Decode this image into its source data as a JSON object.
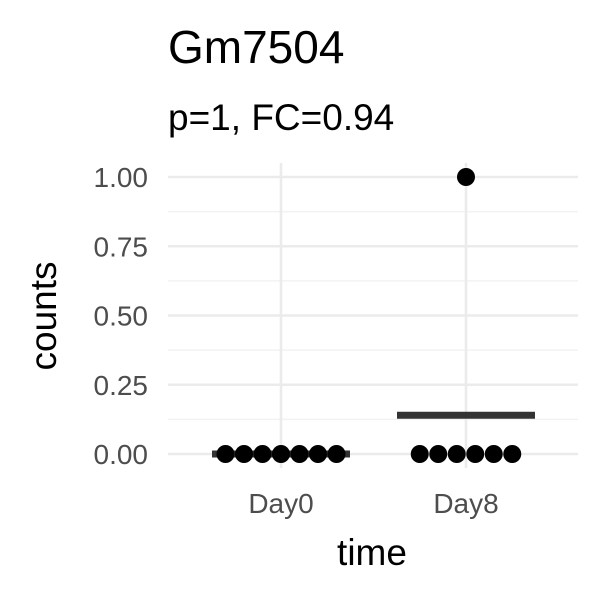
{
  "chart_data": {
    "type": "scatter",
    "title": "Gm7504",
    "subtitle": "p=1, FC=0.94",
    "xlabel": "time",
    "ylabel": "counts",
    "categories": [
      "Day0",
      "Day8"
    ],
    "ylim": [
      0,
      1
    ],
    "yticks": [
      0,
      0.25,
      0.5,
      0.75,
      1
    ],
    "ytick_labels": [
      "0.00",
      "0.25",
      "0.50",
      "0.75",
      "1.00"
    ],
    "grid": true,
    "legend": "none",
    "groups": [
      {
        "category": "Day0",
        "values": [
          0,
          0,
          0,
          0,
          0,
          0,
          0
        ],
        "mean": 0
      },
      {
        "category": "Day8",
        "values": [
          0,
          0,
          0,
          0,
          0,
          0,
          1
        ],
        "mean": 0.14
      }
    ],
    "colors": {
      "points": "#000000",
      "mean_bar": "#333333",
      "grid": "#ebebeb"
    }
  }
}
